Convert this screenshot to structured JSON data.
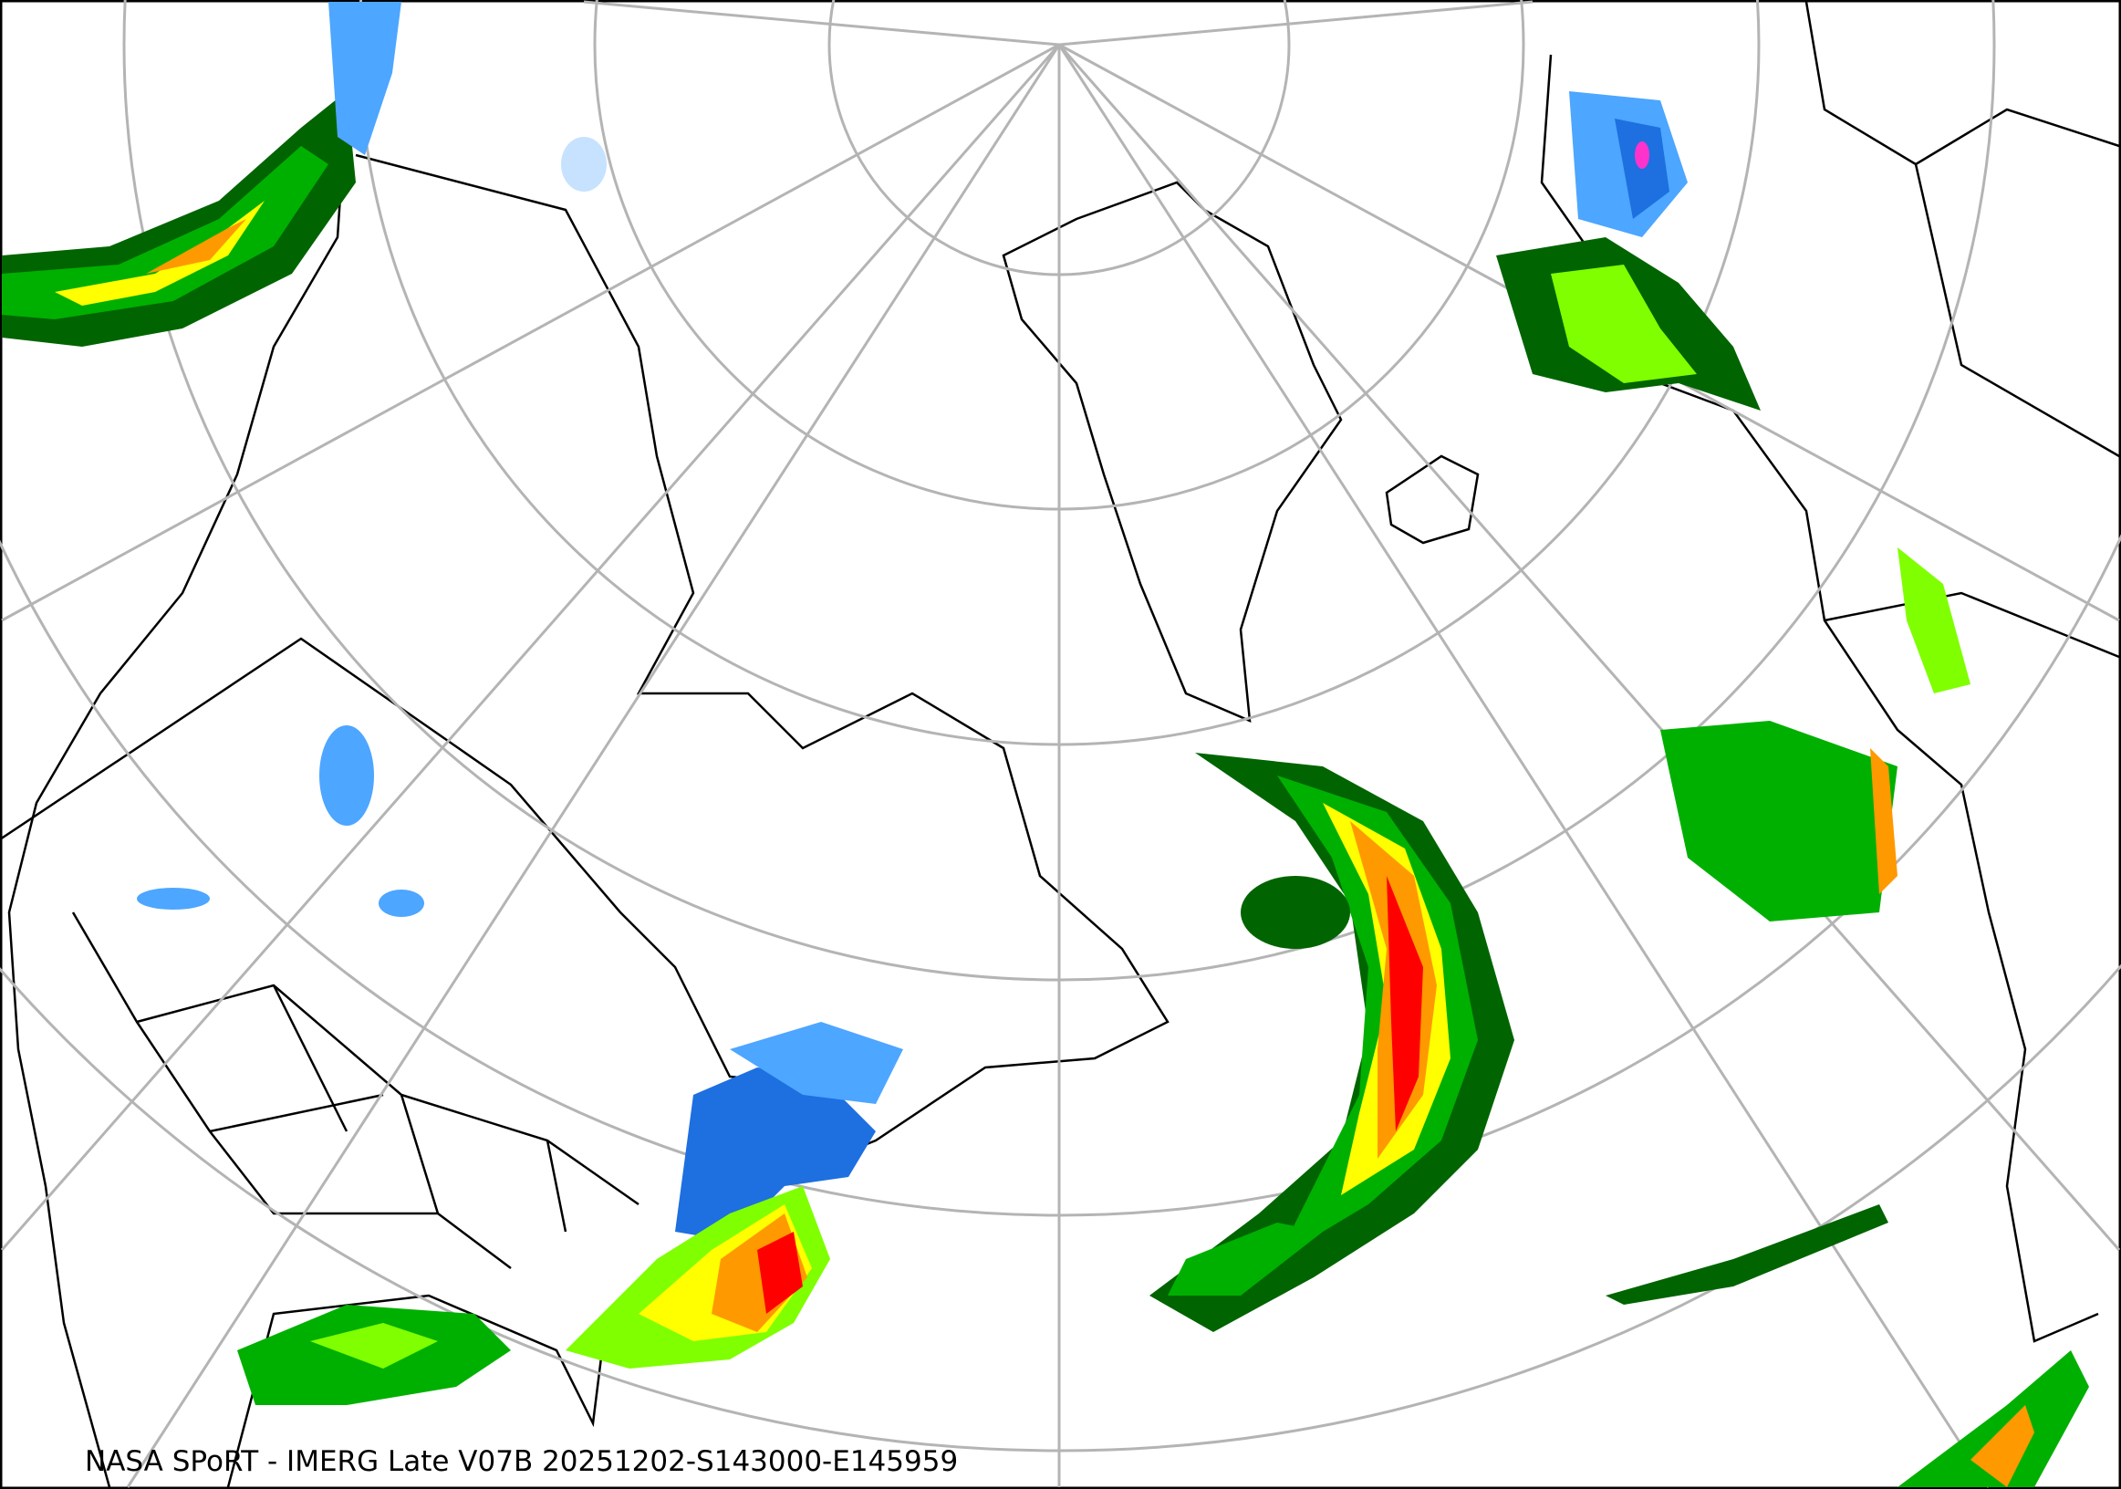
{
  "caption": "NASA SPoRT - IMERG Late V07B 20251202-S143000-E145959",
  "map": {
    "projection": "north-polar-stereographic",
    "graticule_color": "#b4b4b4",
    "border_color": "#000000",
    "precip_colors": [
      "#c6e2ff",
      "#4da6ff",
      "#1e6fe0",
      "#006400",
      "#00b000",
      "#7fff00",
      "#ffff00",
      "#ff9900",
      "#ff0000",
      "#ff33cc"
    ]
  }
}
